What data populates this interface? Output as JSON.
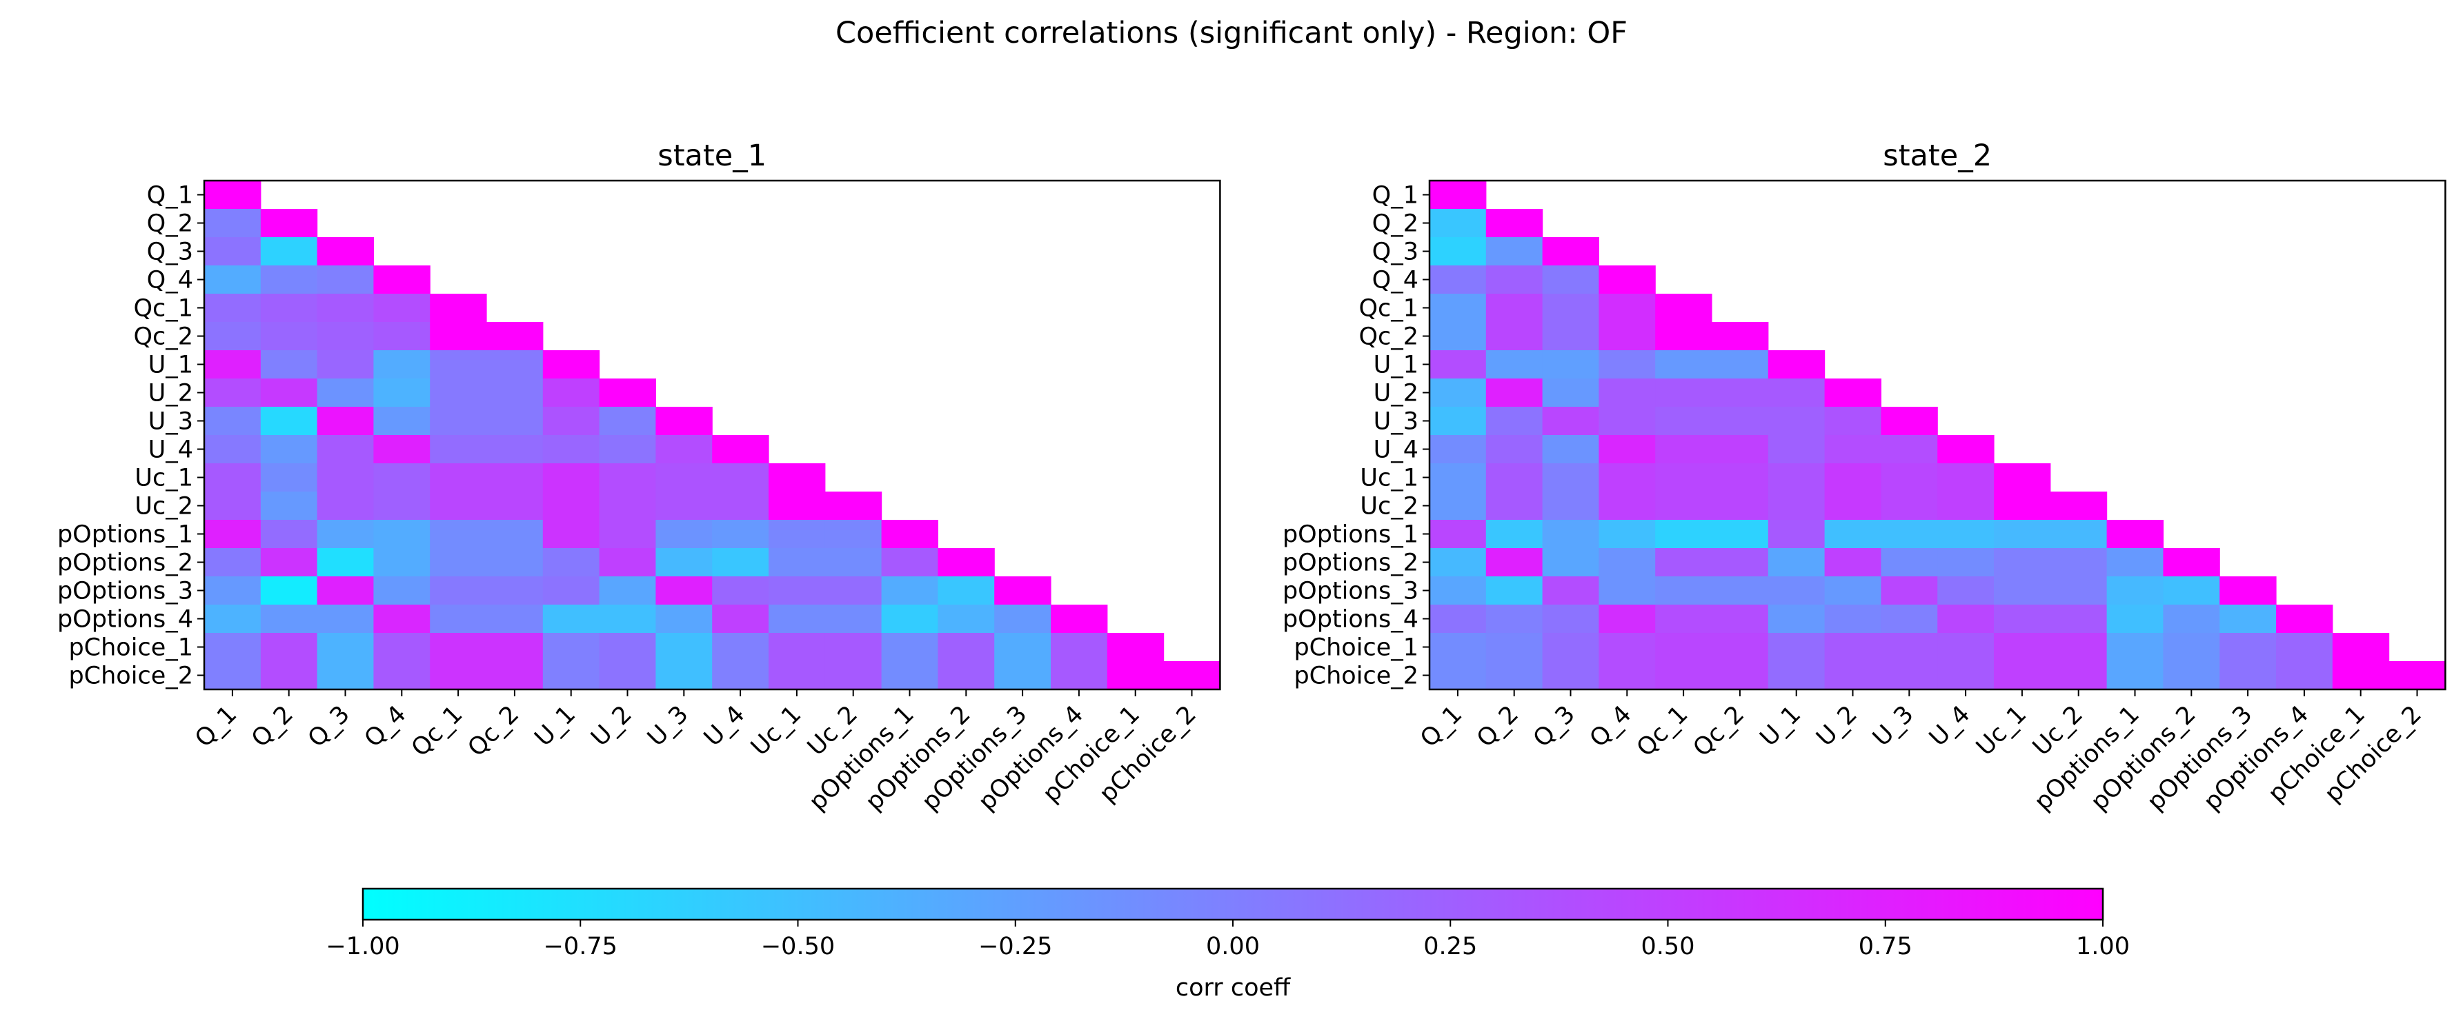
{
  "figure": {
    "title": "Coefficient correlations (significant only) - Region: OF"
  },
  "colors": {
    "cmap_low": "#00ffff",
    "cmap_high": "#ff00ff",
    "background": "#ffffff",
    "frame": "#000000"
  },
  "chart_data": {
    "type": "heatmap",
    "colormap": "cool",
    "masked": "upper triangle (above diagonal) blank",
    "labels": [
      "Q_1",
      "Q_2",
      "Q_3",
      "Q_4",
      "Qc_1",
      "Qc_2",
      "U_1",
      "U_2",
      "U_3",
      "U_4",
      "Uc_1",
      "Uc_2",
      "pOptions_1",
      "pOptions_2",
      "pOptions_3",
      "pOptions_4",
      "pChoice_1",
      "pChoice_2"
    ],
    "vmin": -1.0,
    "vmax": 1.0,
    "colorbar": {
      "label": "corr coeff",
      "ticks": [
        -1.0,
        -0.75,
        -0.5,
        -0.25,
        0.0,
        0.25,
        0.5,
        0.75,
        1.0
      ],
      "tick_labels": [
        "−1.00",
        "−0.75",
        "−0.50",
        "−0.25",
        "0.00",
        "0.25",
        "0.50",
        "0.75",
        "1.00"
      ],
      "orientation": "horizontal",
      "position": "bottom"
    },
    "panels": [
      {
        "title": "state_1",
        "matrix": [
          [
            1
          ],
          [
            0.0,
            1
          ],
          [
            0.1,
            -0.65,
            1
          ],
          [
            -0.35,
            -0.05,
            0.0,
            1
          ],
          [
            0.15,
            0.25,
            0.3,
            0.4,
            1
          ],
          [
            0.1,
            0.2,
            0.25,
            0.3,
            1.0,
            1
          ],
          [
            0.75,
            0.0,
            0.2,
            -0.35,
            0.05,
            0.05,
            1
          ],
          [
            0.4,
            0.55,
            -0.15,
            -0.4,
            0.05,
            0.05,
            0.5,
            1
          ],
          [
            -0.05,
            -0.7,
            0.85,
            -0.2,
            0.05,
            0.05,
            0.35,
            0.0,
            1
          ],
          [
            0.05,
            -0.2,
            0.3,
            0.75,
            0.15,
            0.15,
            0.2,
            0.1,
            0.4,
            1
          ],
          [
            0.3,
            -0.1,
            0.3,
            0.25,
            0.45,
            0.45,
            0.6,
            0.4,
            0.35,
            0.35,
            1
          ],
          [
            0.3,
            -0.2,
            0.3,
            0.25,
            0.45,
            0.45,
            0.6,
            0.4,
            0.35,
            0.35,
            1.0,
            1
          ],
          [
            0.75,
            0.15,
            -0.3,
            -0.35,
            -0.1,
            -0.1,
            0.6,
            0.4,
            -0.15,
            -0.2,
            -0.05,
            -0.05,
            1
          ],
          [
            0.05,
            0.6,
            -0.75,
            -0.35,
            -0.1,
            -0.1,
            0.05,
            0.5,
            -0.45,
            -0.55,
            -0.1,
            -0.1,
            0.3,
            1
          ],
          [
            -0.2,
            -0.85,
            0.75,
            -0.2,
            0.05,
            0.05,
            0.1,
            -0.3,
            0.75,
            0.2,
            0.15,
            0.15,
            -0.35,
            -0.55,
            1
          ],
          [
            -0.4,
            -0.2,
            -0.2,
            0.7,
            -0.05,
            -0.05,
            -0.5,
            -0.5,
            -0.3,
            0.5,
            -0.1,
            -0.1,
            -0.6,
            -0.4,
            -0.2,
            1
          ],
          [
            0.0,
            0.4,
            -0.4,
            0.3,
            0.6,
            0.6,
            0.0,
            0.1,
            -0.5,
            0.0,
            0.3,
            0.3,
            -0.1,
            0.25,
            -0.35,
            0.3,
            1
          ],
          [
            0.0,
            0.4,
            -0.4,
            0.3,
            0.6,
            0.6,
            0.0,
            0.1,
            -0.5,
            0.0,
            0.3,
            0.3,
            -0.1,
            0.25,
            -0.35,
            0.3,
            1.0,
            1
          ]
        ]
      },
      {
        "title": "state_2",
        "matrix": [
          [
            1
          ],
          [
            -0.55,
            1
          ],
          [
            -0.65,
            -0.2,
            1
          ],
          [
            0.05,
            0.25,
            0.05,
            1
          ],
          [
            -0.25,
            0.45,
            0.15,
            0.65,
            1
          ],
          [
            -0.25,
            0.45,
            0.15,
            0.65,
            1.0,
            1
          ],
          [
            0.4,
            -0.25,
            -0.25,
            0.0,
            -0.2,
            -0.2,
            1
          ],
          [
            -0.4,
            0.75,
            -0.2,
            0.3,
            0.3,
            0.3,
            0.3,
            1
          ],
          [
            -0.5,
            0.1,
            0.45,
            0.3,
            0.25,
            0.25,
            0.25,
            0.35,
            1
          ],
          [
            -0.1,
            0.2,
            -0.15,
            0.7,
            0.5,
            0.5,
            0.25,
            0.4,
            0.4,
            1
          ],
          [
            -0.2,
            0.3,
            0.0,
            0.5,
            0.45,
            0.45,
            0.35,
            0.55,
            0.45,
            0.5,
            1
          ],
          [
            -0.2,
            0.3,
            0.0,
            0.5,
            0.45,
            0.45,
            0.35,
            0.55,
            0.45,
            0.5,
            1.0,
            1
          ],
          [
            0.45,
            -0.55,
            -0.3,
            -0.5,
            -0.65,
            -0.65,
            0.3,
            -0.5,
            -0.5,
            -0.5,
            -0.45,
            -0.45,
            1
          ],
          [
            -0.45,
            0.75,
            -0.3,
            -0.15,
            0.3,
            0.3,
            -0.3,
            0.5,
            -0.1,
            -0.1,
            0.0,
            0.0,
            -0.2,
            1
          ],
          [
            -0.3,
            -0.55,
            0.4,
            -0.15,
            -0.1,
            -0.1,
            -0.1,
            -0.2,
            0.45,
            0.1,
            0.0,
            0.0,
            -0.45,
            -0.5,
            1
          ],
          [
            0.1,
            0.0,
            0.1,
            0.65,
            0.4,
            0.4,
            -0.2,
            -0.05,
            0.0,
            0.45,
            0.3,
            0.3,
            -0.5,
            -0.2,
            -0.4,
            1
          ],
          [
            -0.1,
            -0.05,
            0.15,
            0.4,
            0.45,
            0.45,
            0.15,
            0.3,
            0.3,
            0.3,
            0.5,
            0.5,
            -0.3,
            -0.15,
            0.1,
            0.2,
            1
          ],
          [
            -0.1,
            -0.05,
            0.15,
            0.4,
            0.45,
            0.45,
            0.15,
            0.3,
            0.3,
            0.3,
            0.5,
            0.5,
            -0.3,
            -0.15,
            0.1,
            0.2,
            1.0,
            1
          ]
        ]
      }
    ]
  }
}
